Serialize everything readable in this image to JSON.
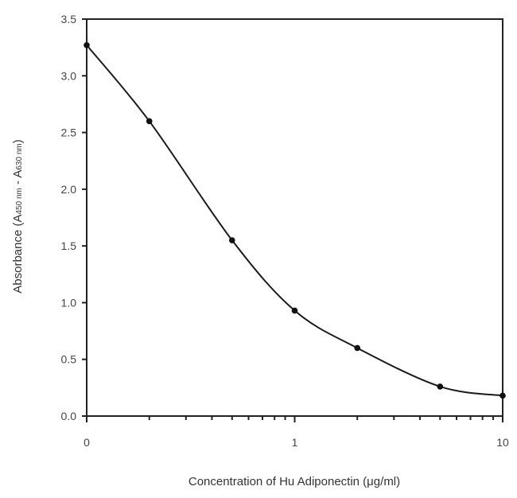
{
  "chart_data": {
    "type": "line",
    "title": "",
    "xlabel": "Concentration of Hu Adiponectin (μg/ml)",
    "ylabel": {
      "main": "Absorbance (A",
      "sub1": "450 nm",
      "mid": " - A",
      "sub2": "630 nm",
      "end": ")"
    },
    "x_scale": "log",
    "xlim": [
      0.1,
      10
    ],
    "x_ticks": [
      {
        "value": 0.1,
        "label": "0"
      },
      {
        "value": 1,
        "label": "1"
      },
      {
        "value": 10,
        "label": "10"
      }
    ],
    "ylim": [
      0,
      3.5
    ],
    "y_ticks": [
      "0.0",
      "0.5",
      "1.0",
      "1.5",
      "2.0",
      "2.5",
      "3.0",
      "3.5"
    ],
    "grid": false,
    "markers": "filled-circle",
    "line_color": "#1a1a1a",
    "x": [
      0.1,
      0.2,
      0.5,
      1,
      2,
      5,
      10
    ],
    "y": [
      3.27,
      2.6,
      1.55,
      0.93,
      0.6,
      0.26,
      0.18
    ]
  }
}
